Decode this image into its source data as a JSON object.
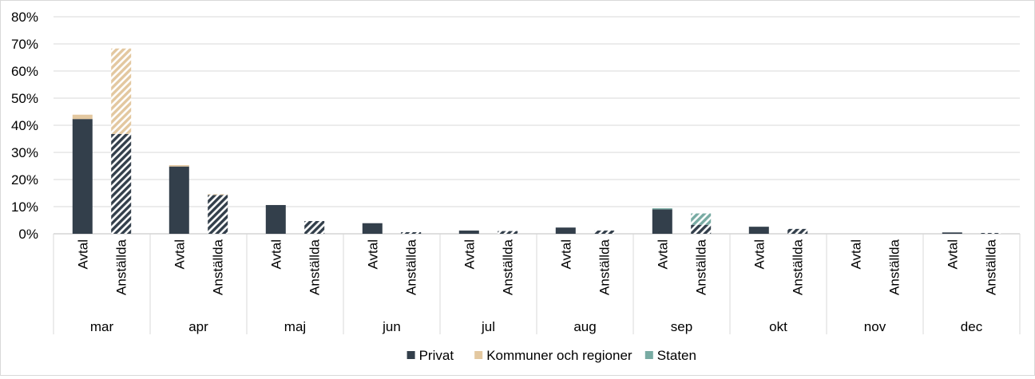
{
  "chart_data": {
    "type": "bar",
    "stacked": true,
    "ylim": [
      0,
      80
    ],
    "yticks": [
      0,
      10,
      20,
      30,
      40,
      50,
      60,
      70,
      80
    ],
    "ytick_format": "{v}%",
    "grid": true,
    "legend_position": "bottom-center",
    "months": [
      "mar",
      "apr",
      "maj",
      "jun",
      "jul",
      "aug",
      "sep",
      "okt",
      "nov",
      "dec"
    ],
    "subcategories": [
      "Avtal",
      "Anställda"
    ],
    "hatched_subcategory": "Anställda",
    "colors": {
      "Privat": "#333f4b",
      "Kommuner och regioner": "#e3c8a0",
      "Staten": "#78aba3"
    },
    "series": [
      {
        "name": "Privat",
        "values": [
          [
            42.3,
            36.8
          ],
          [
            24.8,
            14.3
          ],
          [
            10.6,
            4.7
          ],
          [
            3.9,
            0.6
          ],
          [
            1.2,
            1.0
          ],
          [
            2.3,
            1.2
          ],
          [
            9.0,
            3.3
          ],
          [
            2.6,
            1.8
          ],
          [
            0,
            0
          ],
          [
            0.5,
            0.3
          ]
        ]
      },
      {
        "name": "Kommuner och regioner",
        "values": [
          [
            1.6,
            31.5
          ],
          [
            0.5,
            0.3
          ],
          [
            0,
            0
          ],
          [
            0,
            0
          ],
          [
            0,
            0
          ],
          [
            0,
            0
          ],
          [
            0,
            0
          ],
          [
            0,
            0
          ],
          [
            0,
            0
          ],
          [
            0,
            0
          ]
        ]
      },
      {
        "name": "Staten",
        "values": [
          [
            0,
            0
          ],
          [
            0,
            0
          ],
          [
            0,
            0
          ],
          [
            0,
            0
          ],
          [
            0,
            0
          ],
          [
            0,
            0
          ],
          [
            0.4,
            4.2
          ],
          [
            0,
            0
          ],
          [
            0,
            0
          ],
          [
            0,
            0
          ]
        ]
      }
    ]
  }
}
